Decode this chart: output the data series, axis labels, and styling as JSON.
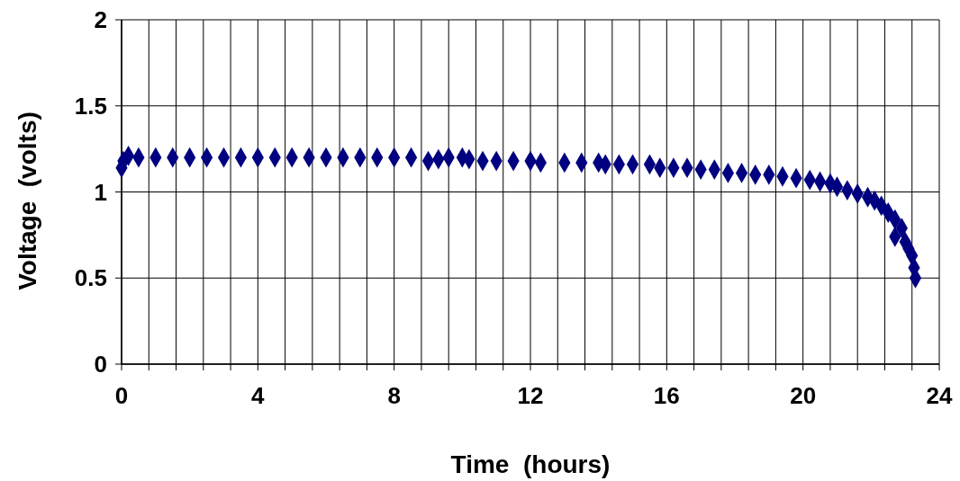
{
  "chart_data": {
    "type": "scatter",
    "xlabel": "Time  (hours)",
    "ylabel": "Voltage  (volts)",
    "xlim": [
      0,
      24
    ],
    "ylim": [
      0,
      2
    ],
    "xticks": [
      0,
      {
        "value": 0.8,
        "label": null
      },
      {
        "value": 1.6,
        "label": null
      },
      {
        "value": 2.4,
        "label": null
      },
      {
        "value": 3.2,
        "label": null
      },
      4,
      {
        "value": 4.8,
        "label": null
      },
      {
        "value": 5.6,
        "label": null
      },
      {
        "value": 6.4,
        "label": null
      },
      {
        "value": 7.2,
        "label": null
      },
      8,
      {
        "value": 8.8,
        "label": null
      },
      {
        "value": 9.6,
        "label": null
      },
      {
        "value": 10.4,
        "label": null
      },
      {
        "value": 11.2,
        "label": null
      },
      12,
      {
        "value": 12.8,
        "label": null
      },
      {
        "value": 13.6,
        "label": null
      },
      {
        "value": 14.4,
        "label": null
      },
      {
        "value": 15.2,
        "label": null
      },
      16,
      {
        "value": 16.8,
        "label": null
      },
      {
        "value": 17.6,
        "label": null
      },
      {
        "value": 18.4,
        "label": null
      },
      {
        "value": 19.2,
        "label": null
      },
      20,
      {
        "value": 20.8,
        "label": null
      },
      {
        "value": 21.6,
        "label": null
      },
      {
        "value": 22.4,
        "label": null
      },
      {
        "value": 23.2,
        "label": null
      },
      24
    ],
    "yticks": [
      0,
      0.5,
      1,
      1.5,
      2
    ],
    "grid": true,
    "marker": "diamond",
    "series": [
      {
        "color": "#000080",
        "x": [
          0,
          0.05,
          0.2,
          0.5,
          1,
          1.5,
          2,
          2.5,
          3,
          3.5,
          4,
          4.5,
          5,
          5.5,
          6,
          6.5,
          7,
          7.5,
          8,
          8.5,
          9,
          9.3,
          9.6,
          10,
          10.2,
          10.6,
          11,
          11.5,
          12,
          12.3,
          13,
          13.5,
          14,
          14.2,
          14.6,
          15,
          15.5,
          15.8,
          16.2,
          16.6,
          17,
          17.4,
          17.8,
          18.2,
          18.6,
          19,
          19.4,
          19.8,
          20.2,
          20.5,
          20.8,
          21,
          21.3,
          21.6,
          21.9,
          22.1,
          22.3,
          22.5,
          22.7,
          22.9,
          22.7,
          23,
          23.1,
          23.2,
          23.26,
          23.3
        ],
        "values": [
          1.14,
          1.18,
          1.21,
          1.2,
          1.2,
          1.2,
          1.2,
          1.2,
          1.2,
          1.2,
          1.2,
          1.2,
          1.2,
          1.2,
          1.2,
          1.2,
          1.2,
          1.2,
          1.2,
          1.2,
          1.18,
          1.19,
          1.2,
          1.2,
          1.19,
          1.18,
          1.18,
          1.18,
          1.18,
          1.17,
          1.17,
          1.17,
          1.17,
          1.16,
          1.16,
          1.16,
          1.16,
          1.14,
          1.14,
          1.14,
          1.13,
          1.13,
          1.11,
          1.11,
          1.1,
          1.1,
          1.09,
          1.08,
          1.07,
          1.06,
          1.05,
          1.03,
          1.01,
          0.99,
          0.97,
          0.95,
          0.92,
          0.88,
          0.84,
          0.79,
          0.74,
          0.71,
          0.67,
          0.63,
          0.56,
          0.5
        ]
      }
    ]
  }
}
